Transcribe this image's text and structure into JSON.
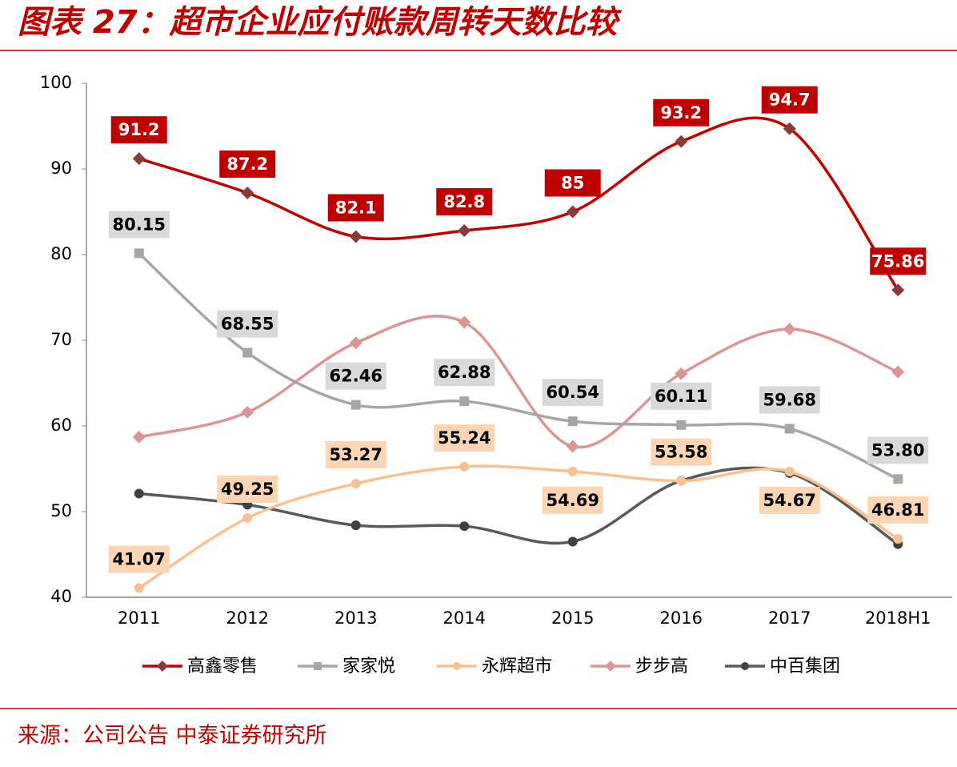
{
  "chart_data": {
    "type": "line",
    "title": "图表 27：超市企业应付账款周转天数比较",
    "source": "来源：公司公告 中泰证券研究所",
    "categories": [
      "2011",
      "2012",
      "2013",
      "2014",
      "2015",
      "2016",
      "2017",
      "2018H1"
    ],
    "ylim": [
      40,
      100
    ],
    "yticks": [
      40,
      50,
      60,
      70,
      80,
      90,
      100
    ],
    "grid": false,
    "legend": "bottom",
    "series": [
      {
        "name": "高鑫零售",
        "color": "#c00000",
        "marker": "diamond",
        "values": [
          91.2,
          87.2,
          82.1,
          82.8,
          85,
          93.2,
          94.7,
          75.86
        ],
        "labels": true
      },
      {
        "name": "家家悦",
        "color": "#a6a6a6",
        "marker": "square",
        "values": [
          80.15,
          68.55,
          62.46,
          62.88,
          60.54,
          60.11,
          59.68,
          53.8
        ],
        "value_labels": [
          "80.15",
          "68.55",
          "62.46",
          "62.88",
          "60.54",
          "60.11",
          "59.68",
          "53.80"
        ],
        "labels": true
      },
      {
        "name": "永辉超市",
        "color": "#fac090",
        "marker": "circle",
        "values": [
          41.07,
          49.25,
          53.27,
          55.24,
          54.69,
          53.58,
          54.67,
          46.81
        ],
        "labels": true
      },
      {
        "name": "步步高",
        "color": "#d99694",
        "marker": "diamond",
        "values": [
          58.7,
          61.6,
          69.7,
          72.1,
          57.6,
          66.1,
          71.3,
          66.3
        ],
        "labels": false
      },
      {
        "name": "中百集团",
        "color": "#595959",
        "marker": "circle",
        "values": [
          52.1,
          50.8,
          48.4,
          48.3,
          46.5,
          53.6,
          54.5,
          46.2
        ],
        "labels": false
      }
    ]
  }
}
